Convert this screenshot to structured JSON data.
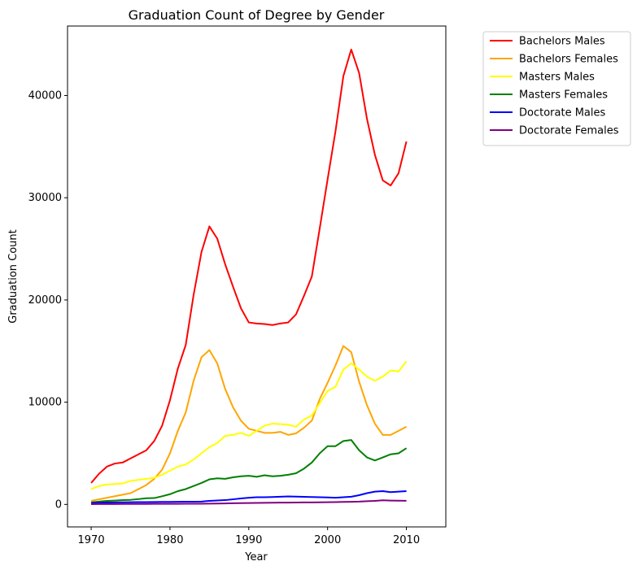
{
  "chart_data": {
    "type": "line",
    "title": "Graduation Count of Degree by Gender",
    "xlabel": "Year",
    "ylabel": "Graduation Count",
    "xlim": [
      1967,
      2015
    ],
    "ylim": [
      -2200,
      46800
    ],
    "xticks": [
      1970,
      1980,
      1990,
      2000,
      2010
    ],
    "yticks": [
      0,
      10000,
      20000,
      30000,
      40000
    ],
    "grid": false,
    "legend_position": "outside-top-right",
    "x": [
      1970,
      1971,
      1972,
      1973,
      1974,
      1975,
      1976,
      1977,
      1978,
      1979,
      1980,
      1981,
      1982,
      1983,
      1984,
      1985,
      1986,
      1987,
      1988,
      1989,
      1990,
      1991,
      1992,
      1993,
      1994,
      1995,
      1996,
      1997,
      1998,
      1999,
      2000,
      2001,
      2002,
      2003,
      2004,
      2005,
      2006,
      2007,
      2008,
      2009,
      2010
    ],
    "series": [
      {
        "name": "Bachelors Males",
        "color": "#ff0000",
        "values": [
          2100,
          3000,
          3700,
          4000,
          4100,
          4500,
          4900,
          5300,
          6200,
          7700,
          10200,
          13300,
          15600,
          20500,
          24700,
          27200,
          26000,
          23500,
          21300,
          19200,
          17800,
          17700,
          17650,
          17550,
          17700,
          17800,
          18600,
          20400,
          22300,
          27000,
          31800,
          36500,
          41900,
          44500,
          42200,
          37700,
          34200,
          31700,
          31200,
          32400,
          35500
        ]
      },
      {
        "name": "Bachelors Females",
        "color": "#ffa500",
        "values": [
          350,
          500,
          650,
          800,
          950,
          1100,
          1500,
          1900,
          2500,
          3400,
          5000,
          7200,
          9000,
          12100,
          14400,
          15100,
          13800,
          11300,
          9500,
          8200,
          7400,
          7200,
          7000,
          7000,
          7100,
          6800,
          6950,
          7500,
          8200,
          10300,
          11900,
          13600,
          15500,
          14900,
          12000,
          9700,
          7900,
          6800,
          6800,
          7200,
          7600
        ]
      },
      {
        "name": "Masters Males",
        "color": "#ffff00",
        "values": [
          1500,
          1800,
          1950,
          2000,
          2050,
          2300,
          2400,
          2500,
          2600,
          2900,
          3300,
          3700,
          3900,
          4400,
          5000,
          5600,
          6000,
          6700,
          6800,
          7000,
          6700,
          7200,
          7700,
          7900,
          7850,
          7800,
          7600,
          8300,
          8700,
          9900,
          11100,
          11500,
          13200,
          13800,
          13200,
          12500,
          12100,
          12500,
          13100,
          13000,
          14000
        ]
      },
      {
        "name": "Masters Females",
        "color": "#008000",
        "values": [
          200,
          280,
          350,
          380,
          420,
          450,
          520,
          600,
          620,
          800,
          1000,
          1300,
          1500,
          1800,
          2100,
          2450,
          2550,
          2500,
          2650,
          2750,
          2800,
          2700,
          2850,
          2750,
          2800,
          2900,
          3050,
          3500,
          4100,
          5000,
          5700,
          5700,
          6200,
          6300,
          5300,
          4600,
          4300,
          4600,
          4900,
          5000,
          5500
        ]
      },
      {
        "name": "Doctorate Males",
        "color": "#0000ff",
        "values": [
          150,
          170,
          190,
          200,
          210,
          220,
          230,
          230,
          240,
          250,
          250,
          260,
          270,
          270,
          280,
          350,
          390,
          420,
          500,
          580,
          650,
          700,
          700,
          720,
          750,
          780,
          760,
          740,
          720,
          700,
          680,
          650,
          700,
          750,
          900,
          1100,
          1250,
          1300,
          1200,
          1250,
          1300
        ]
      },
      {
        "name": "Doctorate Females",
        "color": "#800080",
        "values": [
          30,
          35,
          40,
          40,
          45,
          45,
          50,
          50,
          55,
          55,
          60,
          60,
          65,
          70,
          70,
          80,
          90,
          100,
          120,
          130,
          140,
          150,
          160,
          170,
          180,
          180,
          190,
          200,
          200,
          210,
          220,
          230,
          250,
          260,
          280,
          320,
          350,
          400,
          380,
          370,
          360
        ]
      }
    ]
  }
}
